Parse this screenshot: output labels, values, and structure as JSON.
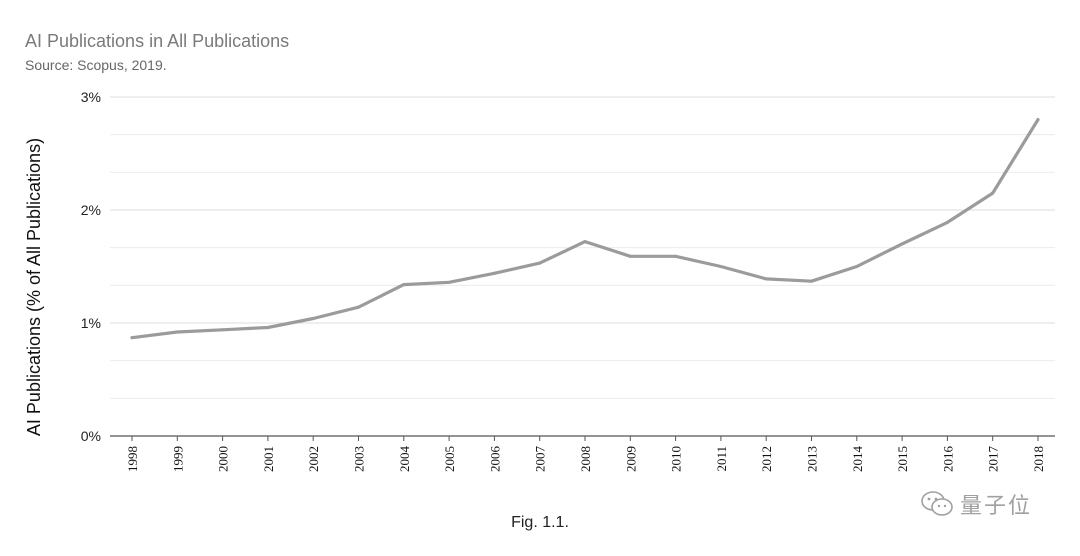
{
  "chart_data": {
    "type": "line",
    "title": "AI Publications in All Publications",
    "subtitle": "Source: Scopus, 2019.",
    "xlabel": "",
    "ylabel": "AI Publications (% of All Publications)",
    "x": [
      "1998",
      "1999",
      "2000",
      "2001",
      "2002",
      "2003",
      "2004",
      "2005",
      "2006",
      "2007",
      "2008",
      "2009",
      "2010",
      "2011",
      "2012",
      "2013",
      "2014",
      "2015",
      "2016",
      "2017",
      "2018"
    ],
    "series": [
      {
        "values": [
          0.87,
          0.92,
          0.94,
          0.96,
          1.04,
          1.14,
          1.34,
          1.36,
          1.44,
          1.53,
          1.72,
          1.59,
          1.59,
          1.5,
          1.39,
          1.37,
          1.5,
          1.7,
          1.89,
          2.15,
          2.8
        ],
        "color": "#9b9b9b"
      }
    ],
    "ylim": [
      0,
      3
    ],
    "yticks": [
      0,
      1,
      2,
      3
    ],
    "ytick_labels": [
      "0%",
      "1%",
      "2%",
      "3%"
    ],
    "grid": true,
    "legend": "none"
  },
  "caption": "Fig. 1.1.",
  "watermark": {
    "text": "量子位",
    "icon": "wechat-icon"
  }
}
